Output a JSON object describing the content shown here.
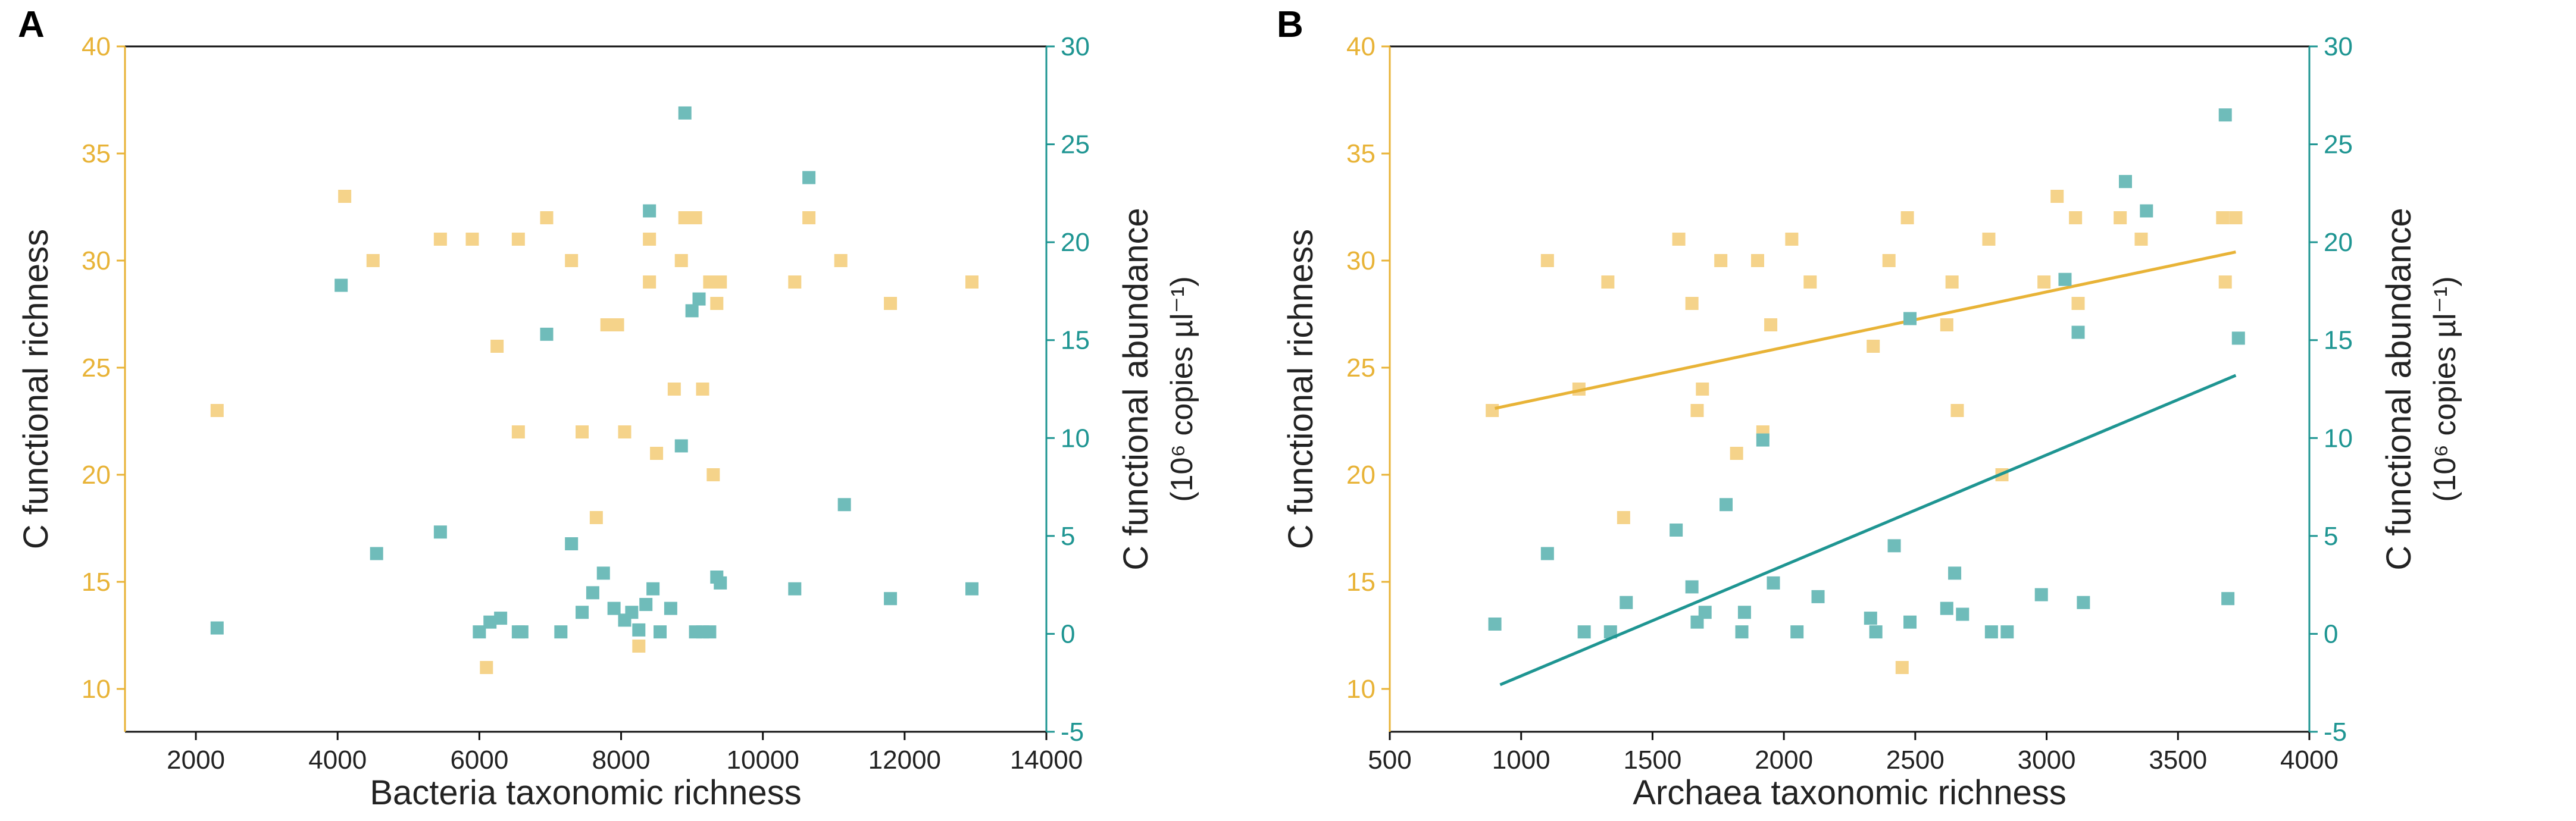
{
  "colors": {
    "richness": "#E8B337",
    "abundance": "#1E9592",
    "richness_point": "#F5D38A",
    "abundance_point": "#6FBCBA",
    "axis_black": "#111111"
  },
  "chart_data": [
    {
      "panel_label": "A",
      "type": "scatter",
      "xlabel": "Bacteria taxonomic richness",
      "ylabel_left": "C functional richness",
      "ylabel_right_main": "C functional abundance",
      "ylabel_right_units": "(10⁶ copies µl⁻¹)",
      "xlim": [
        1000,
        14000
      ],
      "ylim_left": [
        8,
        40
      ],
      "ylim_right": [
        -5,
        30
      ],
      "xticks": [
        2000,
        4000,
        6000,
        8000,
        10000,
        12000,
        14000
      ],
      "yticks_left": [
        10,
        15,
        20,
        25,
        30,
        35,
        40
      ],
      "yticks_right": [
        -5,
        0,
        5,
        10,
        15,
        20,
        25,
        30
      ],
      "series": [
        {
          "name": "C functional richness",
          "axis": "left",
          "points": [
            [
              2300,
              23
            ],
            [
              4100,
              33
            ],
            [
              4500,
              30
            ],
            [
              5450,
              31
            ],
            [
              5900,
              31
            ],
            [
              6100,
              11
            ],
            [
              6250,
              26
            ],
            [
              6550,
              31
            ],
            [
              6550,
              22
            ],
            [
              6950,
              32
            ],
            [
              7300,
              30
            ],
            [
              7450,
              22
            ],
            [
              7650,
              18
            ],
            [
              7800,
              27
            ],
            [
              7950,
              27
            ],
            [
              8050,
              22
            ],
            [
              8250,
              12
            ],
            [
              8400,
              31
            ],
            [
              8400,
              29
            ],
            [
              8500,
              21
            ],
            [
              8750,
              24
            ],
            [
              8850,
              30
            ],
            [
              8900,
              32
            ],
            [
              9050,
              32
            ],
            [
              9150,
              24
            ],
            [
              9250,
              29
            ],
            [
              9300,
              20
            ],
            [
              9350,
              28
            ],
            [
              9400,
              29
            ],
            [
              10450,
              29
            ],
            [
              10650,
              32
            ],
            [
              11100,
              30
            ],
            [
              11800,
              28
            ],
            [
              12950,
              29
            ]
          ]
        },
        {
          "name": "C functional abundance",
          "axis": "right",
          "points": [
            [
              2300,
              0.3
            ],
            [
              4050,
              17.8
            ],
            [
              4550,
              4.1
            ],
            [
              5450,
              5.2
            ],
            [
              6000,
              0.1
            ],
            [
              6150,
              0.6
            ],
            [
              6300,
              0.8
            ],
            [
              6550,
              0.1
            ],
            [
              6600,
              0.1
            ],
            [
              6950,
              15.3
            ],
            [
              7150,
              0.1
            ],
            [
              7300,
              4.6
            ],
            [
              7450,
              1.1
            ],
            [
              7600,
              2.1
            ],
            [
              7750,
              3.1
            ],
            [
              7900,
              1.3
            ],
            [
              8050,
              0.7
            ],
            [
              8150,
              1.1
            ],
            [
              8250,
              0.2
            ],
            [
              8350,
              1.5
            ],
            [
              8400,
              21.6
            ],
            [
              8450,
              2.3
            ],
            [
              8550,
              0.1
            ],
            [
              8700,
              1.3
            ],
            [
              8850,
              9.6
            ],
            [
              8900,
              26.6
            ],
            [
              9000,
              16.5
            ],
            [
              9050,
              0.1
            ],
            [
              9100,
              17.1
            ],
            [
              9150,
              0.1
            ],
            [
              9250,
              0.1
            ],
            [
              9350,
              2.9
            ],
            [
              9400,
              2.6
            ],
            [
              10450,
              2.3
            ],
            [
              10650,
              23.3
            ],
            [
              11150,
              6.6
            ],
            [
              11800,
              1.8
            ],
            [
              12950,
              2.3
            ]
          ]
        }
      ]
    },
    {
      "panel_label": "B",
      "type": "scatter",
      "xlabel": "Archaea taxonomic richness",
      "ylabel_left": "C functional richness",
      "ylabel_right_main": "C functional abundance",
      "ylabel_right_units": "(10⁶ copies µl⁻¹)",
      "xlim": [
        500,
        4000
      ],
      "ylim_left": [
        8,
        40
      ],
      "ylim_right": [
        -5,
        30
      ],
      "xticks": [
        500,
        1000,
        1500,
        2000,
        2500,
        3000,
        3500,
        4000
      ],
      "yticks_left": [
        10,
        15,
        20,
        25,
        30,
        35,
        40
      ],
      "yticks_right": [
        -5,
        0,
        5,
        10,
        15,
        20,
        25,
        30
      ],
      "series": [
        {
          "name": "C functional richness",
          "axis": "left",
          "points": [
            [
              890,
              23
            ],
            [
              1100,
              30
            ],
            [
              1220,
              24
            ],
            [
              1330,
              29
            ],
            [
              1390,
              18
            ],
            [
              1600,
              31
            ],
            [
              1650,
              28
            ],
            [
              1670,
              23
            ],
            [
              1690,
              24
            ],
            [
              1760,
              30
            ],
            [
              1820,
              21
            ],
            [
              1900,
              30
            ],
            [
              1920,
              22
            ],
            [
              1950,
              27
            ],
            [
              2030,
              31
            ],
            [
              2100,
              29
            ],
            [
              2340,
              26
            ],
            [
              2400,
              30
            ],
            [
              2450,
              11
            ],
            [
              2470,
              32
            ],
            [
              2620,
              27
            ],
            [
              2640,
              29
            ],
            [
              2660,
              23
            ],
            [
              2780,
              31
            ],
            [
              2830,
              20
            ],
            [
              2990,
              29
            ],
            [
              3040,
              33
            ],
            [
              3110,
              32
            ],
            [
              3120,
              28
            ],
            [
              3280,
              32
            ],
            [
              3360,
              31
            ],
            [
              3670,
              32
            ],
            [
              3680,
              29
            ],
            [
              3720,
              32
            ]
          ],
          "trendline": [
            [
              900,
              23.1
            ],
            [
              3720,
              30.4
            ]
          ]
        },
        {
          "name": "C functional abundance",
          "axis": "right",
          "points": [
            [
              900,
              0.5
            ],
            [
              1100,
              4.1
            ],
            [
              1240,
              0.1
            ],
            [
              1340,
              0.1
            ],
            [
              1400,
              1.6
            ],
            [
              1590,
              5.3
            ],
            [
              1650,
              2.4
            ],
            [
              1670,
              0.6
            ],
            [
              1700,
              1.1
            ],
            [
              1780,
              6.6
            ],
            [
              1840,
              0.1
            ],
            [
              1850,
              1.1
            ],
            [
              1920,
              9.9
            ],
            [
              1960,
              2.6
            ],
            [
              2050,
              0.1
            ],
            [
              2130,
              1.9
            ],
            [
              2330,
              0.8
            ],
            [
              2350,
              0.1
            ],
            [
              2420,
              4.5
            ],
            [
              2480,
              0.6
            ],
            [
              2480,
              16.1
            ],
            [
              2620,
              1.3
            ],
            [
              2650,
              3.1
            ],
            [
              2680,
              1.0
            ],
            [
              2790,
              0.1
            ],
            [
              2850,
              0.1
            ],
            [
              2980,
              2.0
            ],
            [
              3070,
              18.1
            ],
            [
              3120,
              15.4
            ],
            [
              3140,
              1.6
            ],
            [
              3300,
              23.1
            ],
            [
              3380,
              21.6
            ],
            [
              3680,
              26.5
            ],
            [
              3690,
              1.8
            ],
            [
              3730,
              15.1
            ]
          ],
          "trendline": [
            [
              920,
              -2.6
            ],
            [
              3720,
              13.2
            ]
          ]
        }
      ]
    }
  ]
}
